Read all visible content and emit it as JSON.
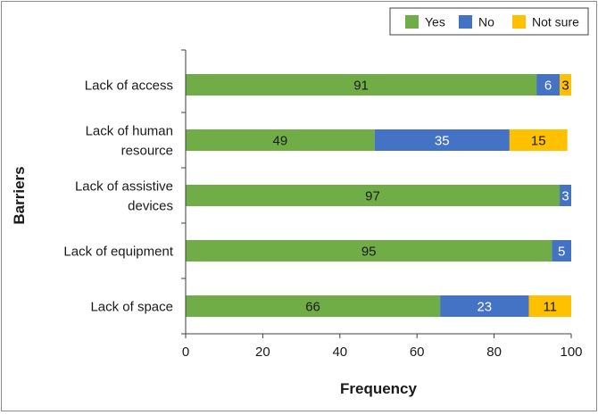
{
  "chart_data": {
    "type": "bar",
    "orientation": "horizontal",
    "stacked": true,
    "title": "",
    "xlabel": "Frequency",
    "ylabel": "Barriers",
    "xlim": [
      0,
      100
    ],
    "xticks": [
      0,
      20,
      40,
      60,
      80,
      100
    ],
    "grid": false,
    "legend_position": "top-right",
    "categories": [
      [
        "Lack of access"
      ],
      [
        "Lack of human",
        "resource"
      ],
      [
        "Lack of assistive",
        "devices"
      ],
      [
        "Lack of equipment"
      ],
      [
        "Lack of space"
      ]
    ],
    "series": [
      {
        "name": "Yes",
        "color": "#70ad47",
        "values": [
          91,
          49,
          97,
          95,
          66
        ]
      },
      {
        "name": "No",
        "color": "#4472c4",
        "values": [
          6,
          35,
          3,
          5,
          23
        ]
      },
      {
        "name": "Not sure",
        "color": "#ffc000",
        "values": [
          3,
          15,
          0,
          0,
          11
        ]
      }
    ]
  }
}
